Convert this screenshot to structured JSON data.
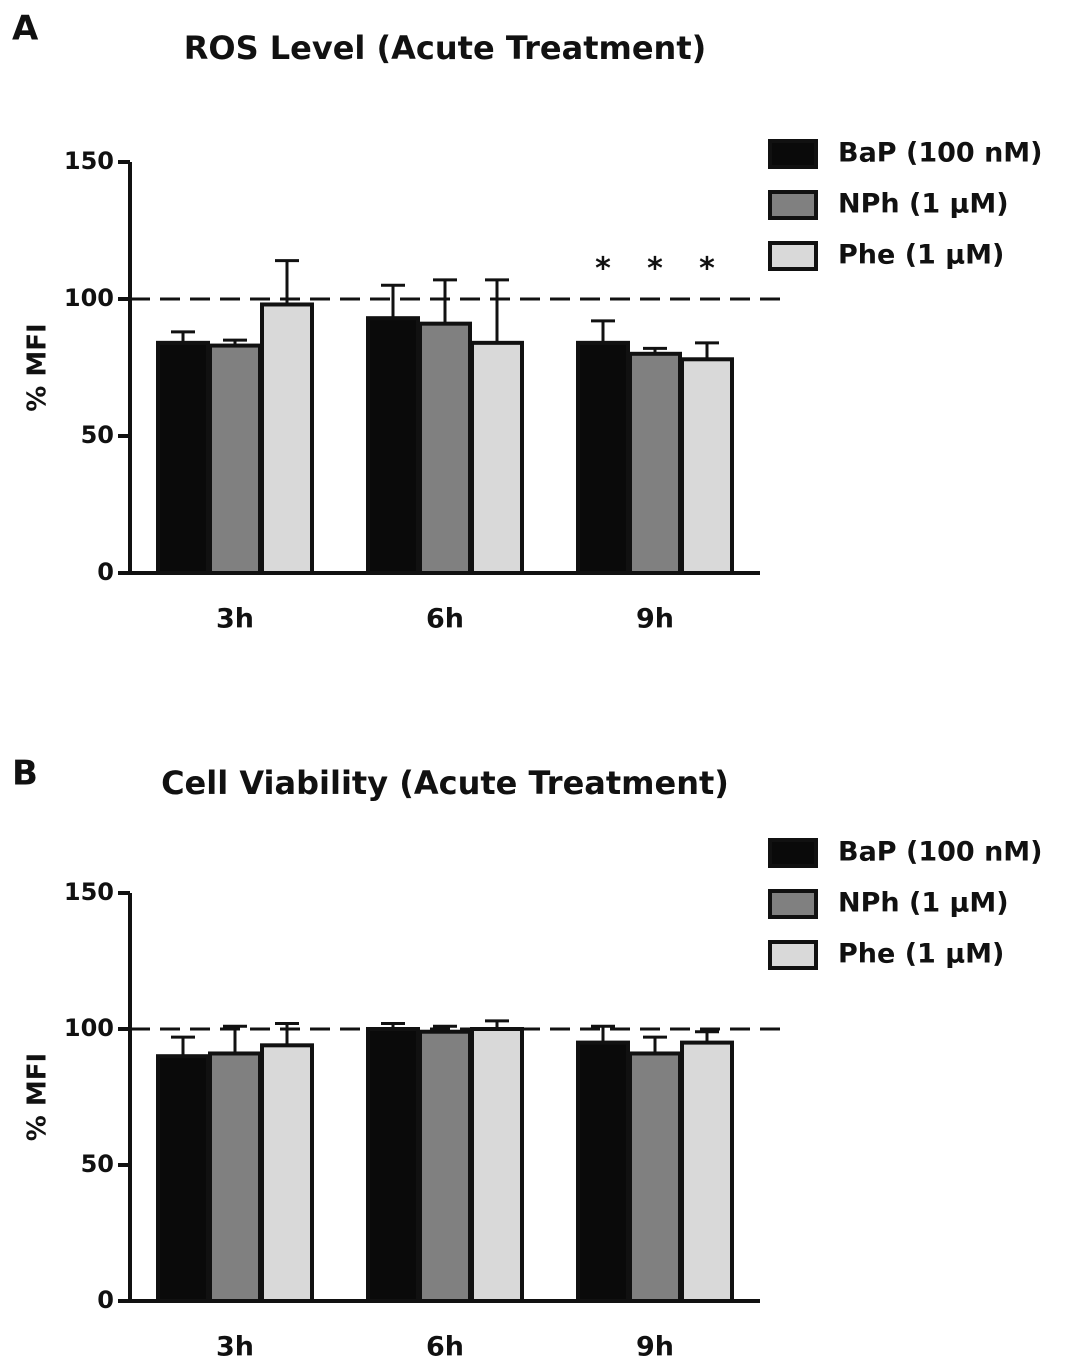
{
  "chart_data": [
    {
      "type": "bar",
      "panel": "A",
      "title": "ROS Level (Acute Treatment)",
      "ylabel": "% MFI",
      "categories": [
        "3h",
        "6h",
        "9h"
      ],
      "series": [
        {
          "name": "BaP (100 nM)",
          "color": "#0a0a0a",
          "values": [
            84,
            93,
            84
          ],
          "errors": [
            4,
            12,
            8
          ]
        },
        {
          "name": "NPh (1 μM)",
          "color": "#808080",
          "values": [
            83,
            91,
            80
          ],
          "errors": [
            2,
            16,
            2
          ]
        },
        {
          "name": "Phe (1 μM)",
          "color": "#d9d9d9",
          "values": [
            98,
            84,
            78
          ],
          "errors": [
            16,
            23,
            6
          ]
        }
      ],
      "ylim": [
        0,
        150
      ],
      "yticks": [
        0,
        50,
        100,
        150
      ],
      "reference_line": 100,
      "annotations": [
        {
          "text": "*",
          "category": "9h",
          "series": "BaP (100 nM)"
        },
        {
          "text": "*",
          "category": "9h",
          "series": "NPh (1 μM)"
        },
        {
          "text": "*",
          "category": "9h",
          "series": "Phe (1 μM)"
        }
      ]
    },
    {
      "type": "bar",
      "panel": "B",
      "title": "Cell Viability (Acute Treatment)",
      "ylabel": "% MFI",
      "categories": [
        "3h",
        "6h",
        "9h"
      ],
      "series": [
        {
          "name": "BaP (100 nM)",
          "color": "#0a0a0a",
          "values": [
            90,
            100,
            95
          ],
          "errors": [
            7,
            2,
            6
          ]
        },
        {
          "name": "NPh (1 μM)",
          "color": "#808080",
          "values": [
            91,
            99,
            91
          ],
          "errors": [
            10,
            2,
            6
          ]
        },
        {
          "name": "Phe (1 μM)",
          "color": "#d9d9d9",
          "values": [
            94,
            100,
            95
          ],
          "errors": [
            8,
            3,
            4
          ]
        }
      ],
      "ylim": [
        0,
        150
      ],
      "yticks": [
        0,
        50,
        100,
        150
      ],
      "reference_line": 100
    }
  ]
}
